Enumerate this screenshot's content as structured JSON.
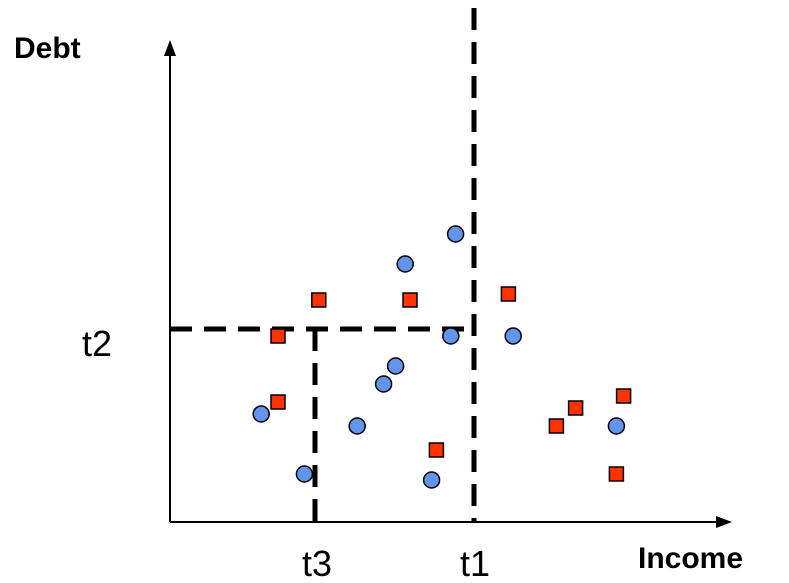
{
  "axes": {
    "x_label": "Income",
    "y_label": "Debt"
  },
  "thresholds": {
    "t1": "t1",
    "t2": "t2",
    "t3": "t3"
  },
  "colors": {
    "circle_fill": "#6495ED",
    "square_fill": "#FF3300",
    "stroke": "#000000"
  },
  "points": {
    "circles": [
      {
        "income": 38,
        "debt": 18
      },
      {
        "income": 56,
        "debt": 8
      },
      {
        "income": 78,
        "debt": 16
      },
      {
        "income": 89,
        "debt": 23
      },
      {
        "income": 94,
        "debt": 26
      },
      {
        "income": 98,
        "debt": 43
      },
      {
        "income": 109,
        "debt": 7
      },
      {
        "income": 117,
        "debt": 31
      },
      {
        "income": 119,
        "debt": 48
      },
      {
        "income": 143,
        "debt": 31
      },
      {
        "income": 186,
        "debt": 16
      }
    ],
    "squares": [
      {
        "income": 45,
        "debt": 20
      },
      {
        "income": 45,
        "debt": 31
      },
      {
        "income": 62,
        "debt": 37
      },
      {
        "income": 100,
        "debt": 37
      },
      {
        "income": 111,
        "debt": 12
      },
      {
        "income": 141,
        "debt": 38
      },
      {
        "income": 161,
        "debt": 16
      },
      {
        "income": 169,
        "debt": 19
      },
      {
        "income": 186,
        "debt": 8
      },
      {
        "income": 189,
        "debt": 21
      }
    ]
  }
}
